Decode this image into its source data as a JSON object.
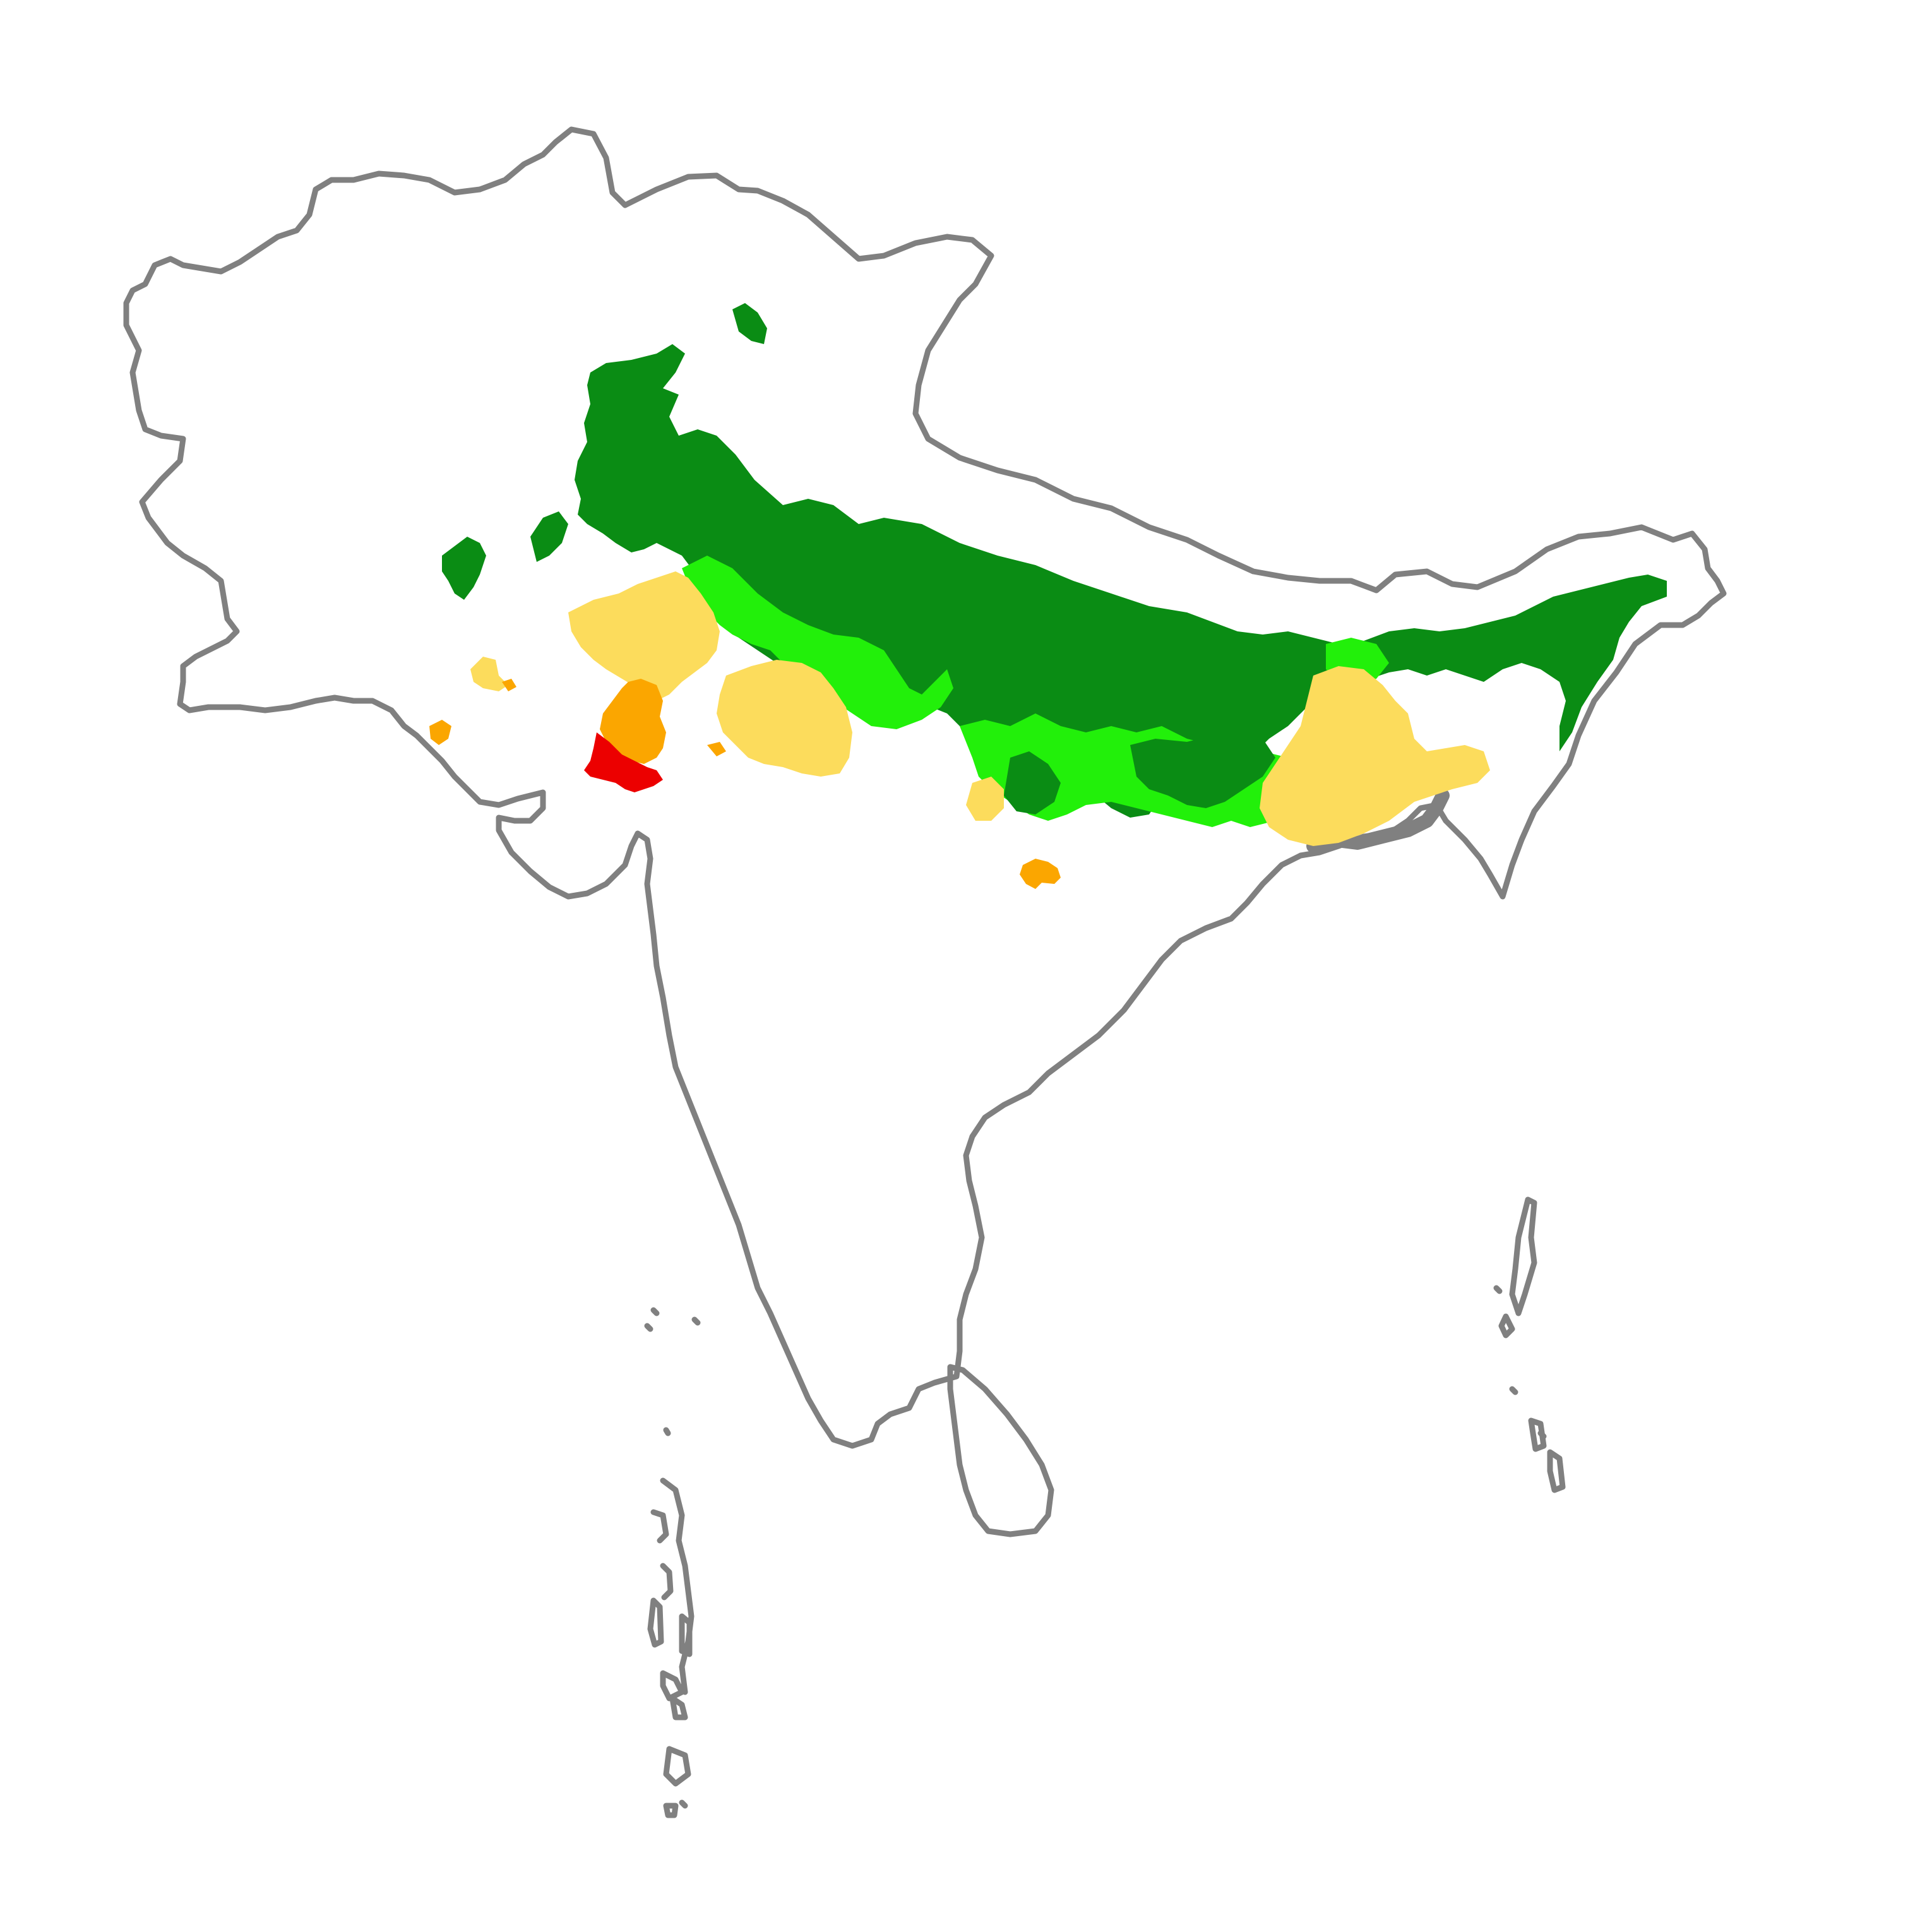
{
  "map": {
    "region": "South Asia",
    "classes": [
      {
        "id": "dark-green",
        "color": "#0a8c14"
      },
      {
        "id": "light-green",
        "color": "#22f00a"
      },
      {
        "id": "sand",
        "color": "#fcdc5c"
      },
      {
        "id": "orange",
        "color": "#fba600"
      },
      {
        "id": "red",
        "color": "#ec0000"
      }
    ],
    "outline_color": "#808080",
    "background": "#ffffff"
  }
}
